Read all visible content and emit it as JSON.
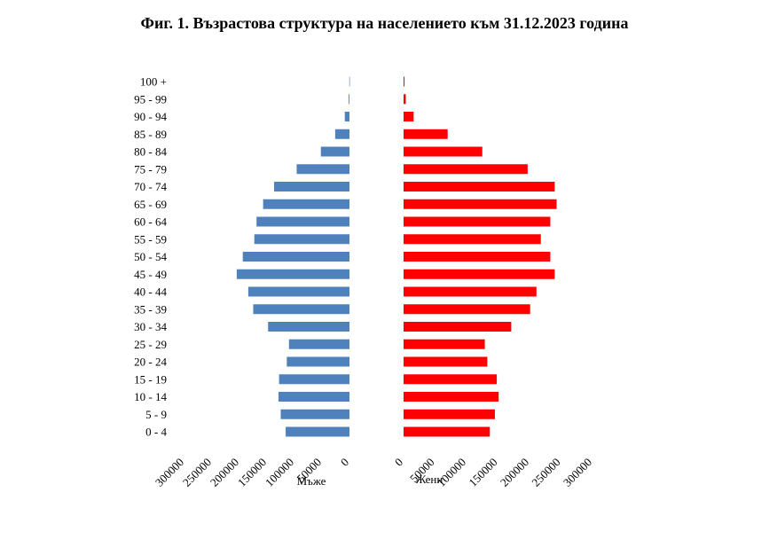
{
  "chart_data": {
    "type": "bar",
    "title": "Фиг. 1. Възрастова структура на населението към 31.12.2023 година",
    "categories": [
      "100 +",
      "95 - 99",
      "90 - 94",
      "85 - 89",
      "80 - 84",
      "75 - 79",
      "70 - 74",
      "65 - 69",
      "60 - 64",
      "55 - 59",
      "50 - 54",
      "45 - 49",
      "40 - 44",
      "35 - 39",
      "30 - 34",
      "25 - 29",
      "20 - 24",
      "15 - 19",
      "10 - 14",
      "5 - 9",
      "0 - 4"
    ],
    "series": [
      {
        "name": "Мъже",
        "color": "#4F81BD",
        "values": [
          300,
          1500,
          8500,
          26000,
          52000,
          96000,
          137000,
          157000,
          169000,
          173000,
          194000,
          205000,
          184000,
          175000,
          148000,
          110000,
          114000,
          128000,
          129000,
          125000,
          116000
        ]
      },
      {
        "name": "Жени",
        "color": "#FF0000",
        "values": [
          1500,
          3500,
          16000,
          70000,
          125000,
          197000,
          240000,
          243000,
          233000,
          218000,
          233000,
          240000,
          211000,
          201000,
          171000,
          129000,
          133000,
          148000,
          151000,
          145000,
          137000
        ]
      }
    ],
    "xlim": [
      0,
      300000
    ],
    "x_ticks": [
      "0",
      "50000",
      "100000",
      "150000",
      "200000",
      "250000",
      "300000"
    ],
    "left_axis_label": "Мъже",
    "right_axis_label": "Жени"
  }
}
